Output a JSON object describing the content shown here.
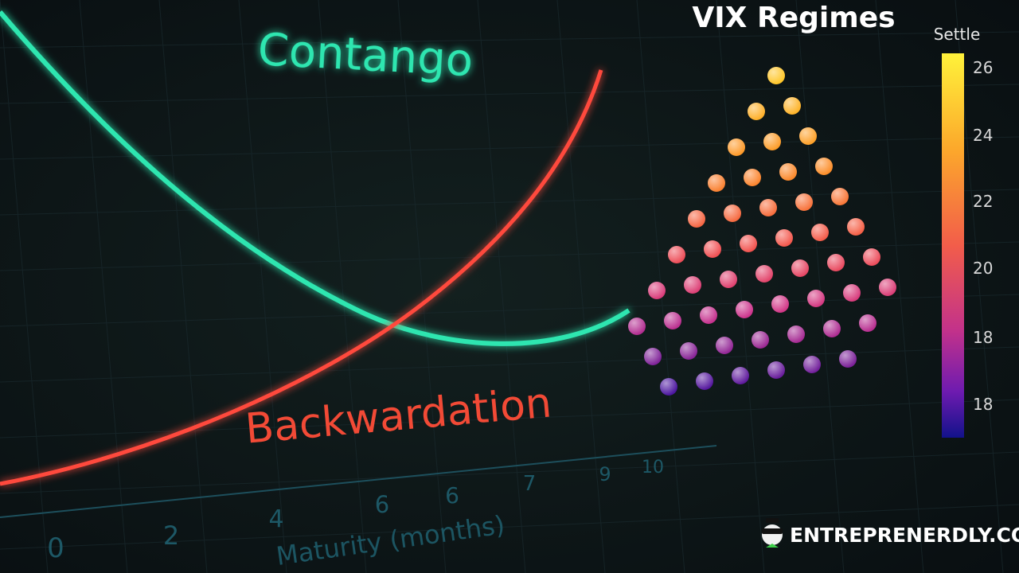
{
  "labels": {
    "contango": "Contango",
    "backwardation": "Backwardation",
    "title": "VIX Regimes",
    "x_axis": "Maturity (months)"
  },
  "x_ticks": [
    "0",
    "2",
    "4",
    "6",
    "6",
    "7",
    "9",
    "10"
  ],
  "colorbar": {
    "title": "Settle",
    "ticks": [
      "26",
      "24",
      "22",
      "20",
      "18",
      "18"
    ]
  },
  "watermark": "ENTREPRENERDLY.COM"
}
